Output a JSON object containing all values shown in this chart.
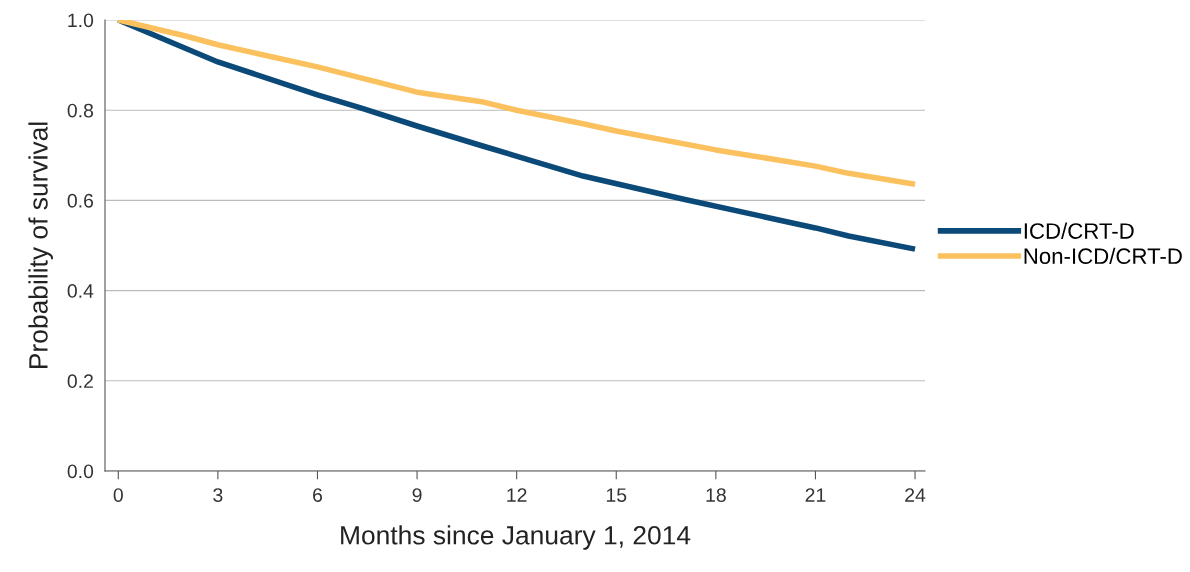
{
  "chart_data": {
    "type": "line",
    "xlabel": "Months since January 1, 2014",
    "ylabel": "Probability of survival",
    "xlim": [
      -0.4,
      24.3
    ],
    "xticks": [
      0,
      3,
      6,
      9,
      12,
      15,
      18,
      21,
      24
    ],
    "ylim": [
      0,
      1
    ],
    "yticks": [
      {
        "value": 0,
        "label": "0.0"
      },
      0.2,
      0.4,
      0.6,
      0.8,
      {
        "value": 1,
        "label": "1.0"
      }
    ],
    "grid": "y",
    "legend": "right",
    "marker": "none",
    "line_style": "solid",
    "series": [
      {
        "name": "ICD/CRT-D",
        "color": "#0b4a78",
        "x": [
          0,
          2,
          3,
          6,
          7.3,
          9,
          11,
          14,
          17,
          21,
          22,
          24
        ],
        "values": [
          1.0,
          0.938,
          0.907,
          0.834,
          0.805,
          0.765,
          0.72,
          0.654,
          0.603,
          0.539,
          0.521,
          0.492
        ]
      },
      {
        "name": "Non-ICD/CRT-D",
        "color": "#fbc15e",
        "x": [
          0,
          2,
          3,
          6,
          9,
          11,
          12,
          14,
          15,
          18,
          21,
          22,
          24
        ],
        "values": [
          1.0,
          0.965,
          0.945,
          0.896,
          0.84,
          0.818,
          0.8,
          0.77,
          0.754,
          0.712,
          0.676,
          0.66,
          0.636
        ]
      }
    ]
  }
}
